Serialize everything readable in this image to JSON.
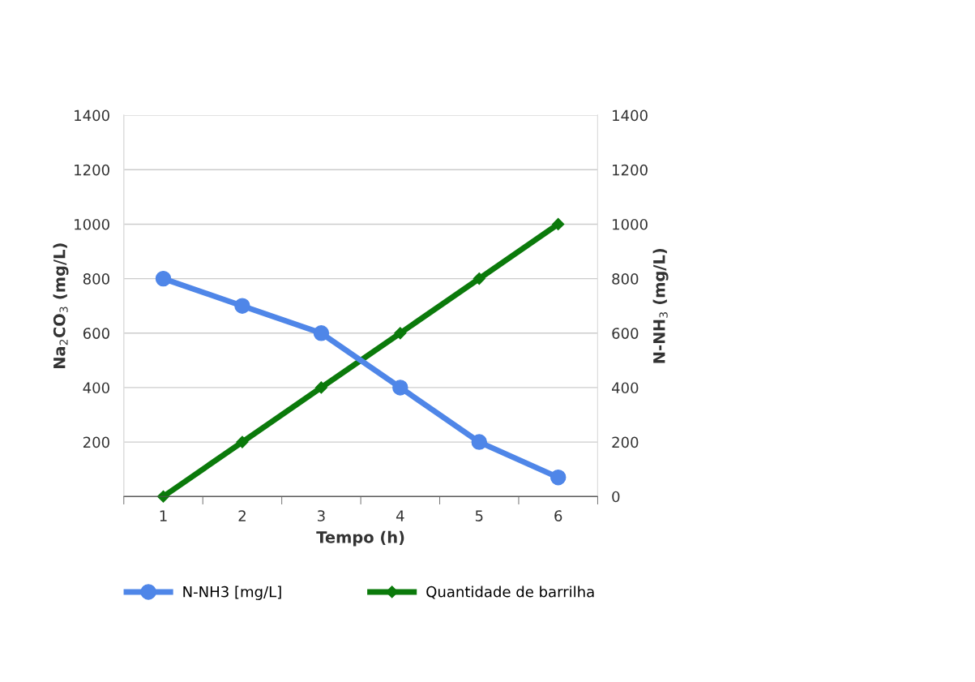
{
  "chart_data": {
    "type": "line",
    "xlabel": "Tempo (h)",
    "ylabel": "Na$_{2}$CO$_{3}$ (mg/L)",
    "y2label": "N-NH$_{3}$ (mg/L)",
    "categories": [
      "1",
      "2",
      "3",
      "4",
      "5",
      "6"
    ],
    "series": [
      {
        "name": "N-NH3 [mg/L]",
        "color": "#4f86e8",
        "values": [
          800,
          700,
          600,
          400,
          200,
          70
        ],
        "axis": "y2",
        "marker": "circle"
      },
      {
        "name": "Quantidade de barrilha",
        "color": "#0b7a0b",
        "values": [
          0,
          200,
          400,
          600,
          800,
          1000
        ],
        "marker": "diamond"
      }
    ],
    "ylim": [
      0,
      1400
    ],
    "yticks": [
      {
        "value": 0,
        "label": null
      },
      200,
      400,
      600,
      800,
      1000,
      1200,
      1400
    ],
    "y2lim": [
      0,
      1400
    ],
    "y2ticks": [
      0,
      200,
      400,
      600,
      800,
      1000,
      1200,
      1400
    ],
    "grid": "y",
    "legend": "bottom"
  }
}
